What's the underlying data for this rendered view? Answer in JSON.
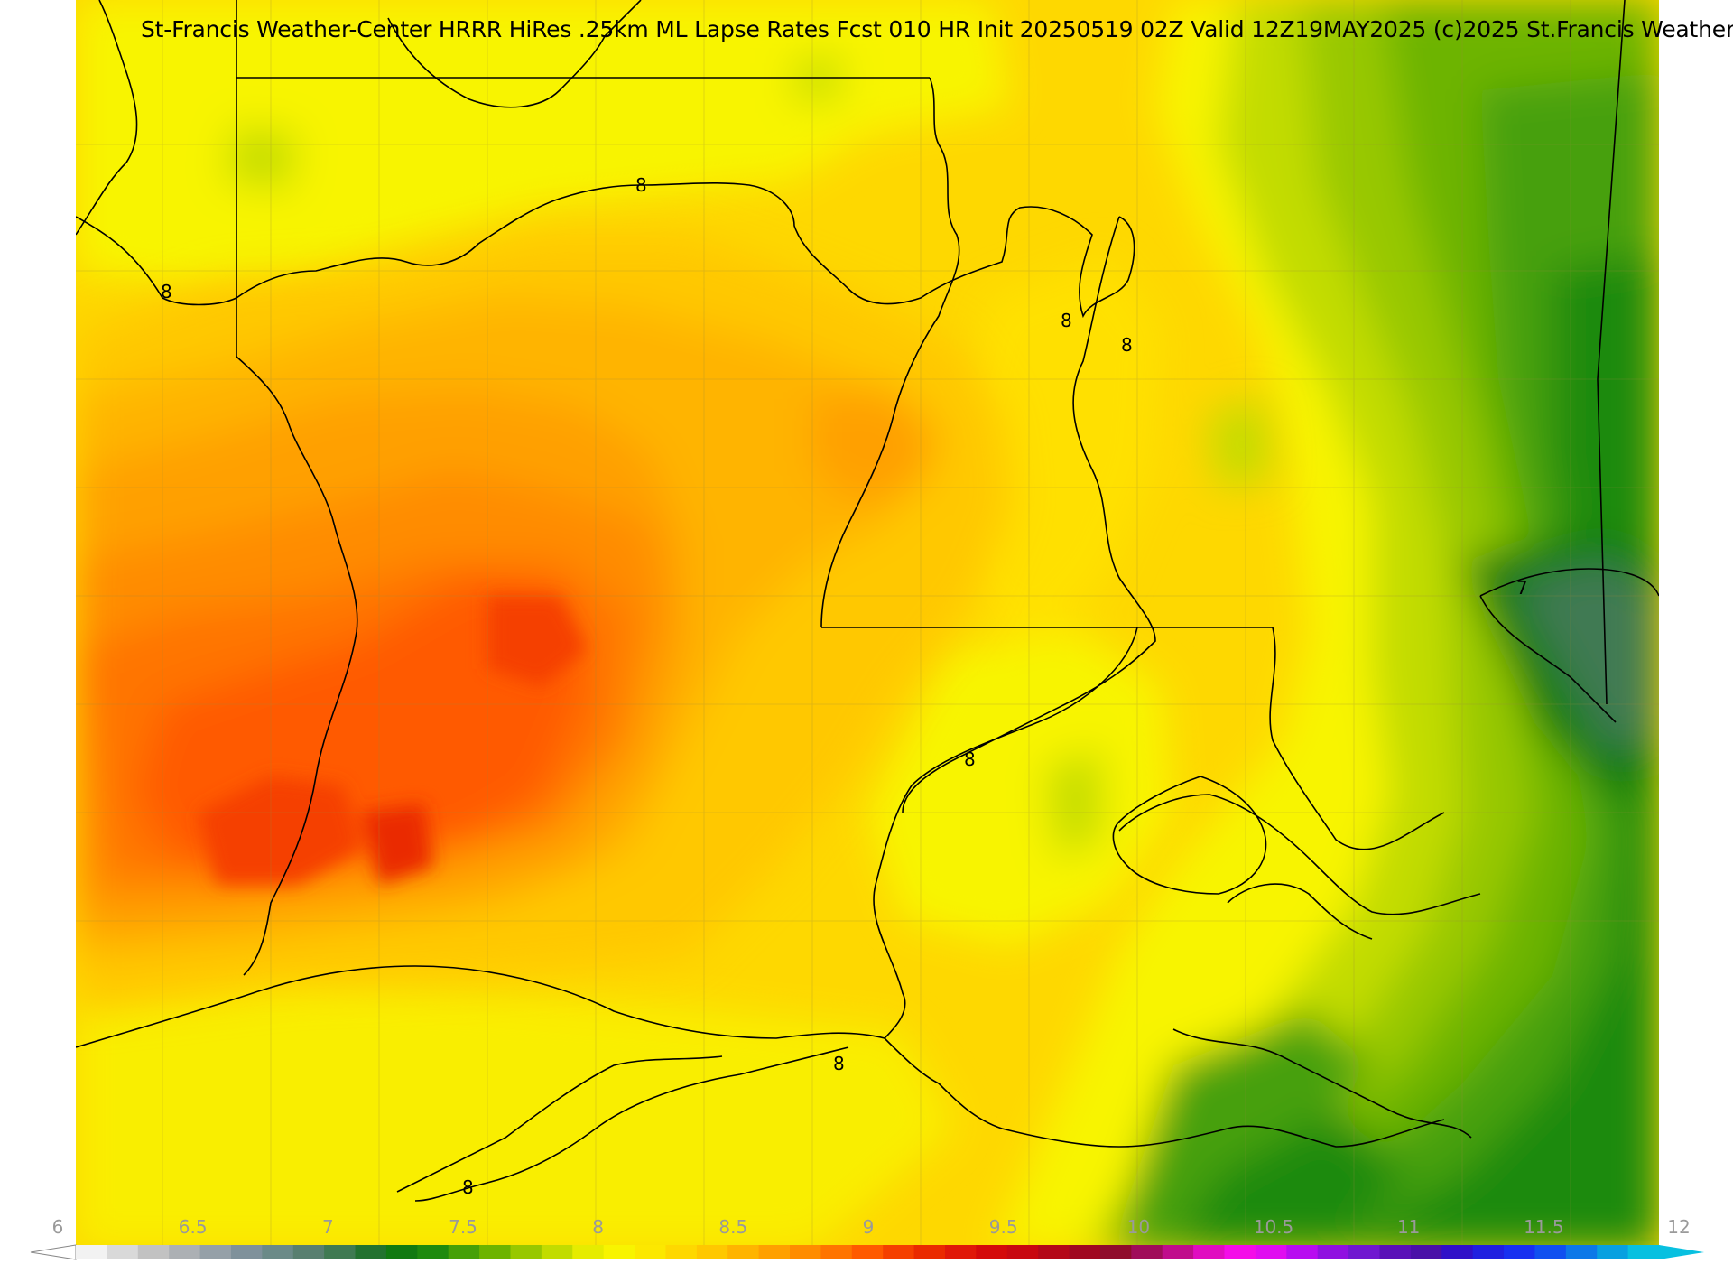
{
  "title": "St-Francis Weather-Center HRRR HiRes .25km ML Lapse Rates  Fcst 010 HR Init 20250519 02Z  Valid 12Z19MAY2025    (c)2025 St.Francis Weather",
  "contour_labels": [
    "8",
    "8",
    "8",
    "8",
    "8",
    "8",
    "8",
    "7"
  ],
  "colorbar": {
    "ticks": [
      "6",
      "6.5",
      "7",
      "7.5",
      "8",
      "8.5",
      "9",
      "9.5",
      "10",
      "10.5",
      "11",
      "11.5",
      "12"
    ],
    "colors": [
      "#f2f2f2",
      "#d9d9d9",
      "#c2c2c2",
      "#acb0b4",
      "#95a0a8",
      "#7f919b",
      "#6b8a88",
      "#587f70",
      "#3f7a52",
      "#22722f",
      "#117a11",
      "#1e8a0e",
      "#46a008",
      "#6db400",
      "#98c800",
      "#c2dc00",
      "#e6ec00",
      "#f8f400",
      "#fce800",
      "#fed800",
      "#ffc800",
      "#ffb400",
      "#ffa000",
      "#ff8c00",
      "#ff7400",
      "#ff5a00",
      "#f54000",
      "#ea2a00",
      "#e01808",
      "#d40a0a",
      "#c80810",
      "#b40818",
      "#a00820",
      "#900c2c",
      "#a00c5a",
      "#c00c8c",
      "#e00cc0",
      "#f40ce8",
      "#e00cf0",
      "#b80cf0",
      "#9010e0",
      "#7018d0",
      "#5a10b8",
      "#4a10a8",
      "#3010c8",
      "#2020e0",
      "#1830f0",
      "#1050f0",
      "#0c78e8",
      "#08a0e0",
      "#08c0e0"
    ]
  }
}
